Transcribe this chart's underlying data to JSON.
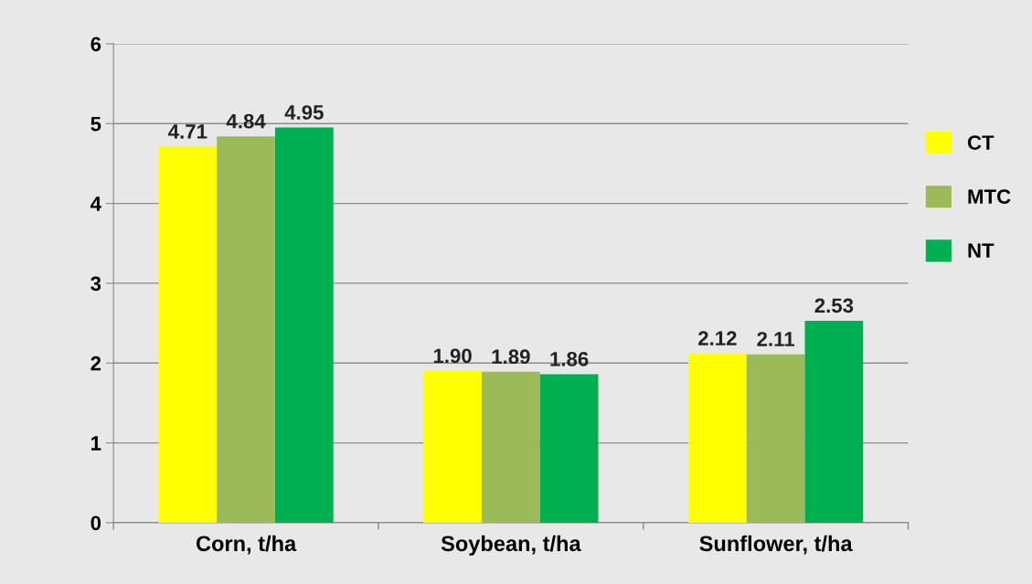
{
  "chart_data": {
    "type": "bar",
    "categories": [
      "Corn, t/ha",
      "Soybean, t/ha",
      "Sunflower, t/ha"
    ],
    "series": [
      {
        "name": "CT",
        "color": "#ffff00",
        "values": [
          4.71,
          1.9,
          2.12
        ],
        "value_labels": [
          "4.71",
          "1.90",
          "2.12"
        ]
      },
      {
        "name": "MTC",
        "color": "#9bbb59",
        "values": [
          4.84,
          1.89,
          2.11
        ],
        "value_labels": [
          "4.84",
          "1.89",
          "2.11"
        ]
      },
      {
        "name": "NT",
        "color": "#00b050",
        "values": [
          4.95,
          1.86,
          2.53
        ],
        "value_labels": [
          "4.95",
          "1.86",
          "2.53"
        ]
      }
    ],
    "ylim": [
      0,
      6
    ],
    "yticks": [
      0,
      1,
      2,
      3,
      4,
      5,
      6
    ],
    "grid": "y",
    "legend": "right"
  }
}
